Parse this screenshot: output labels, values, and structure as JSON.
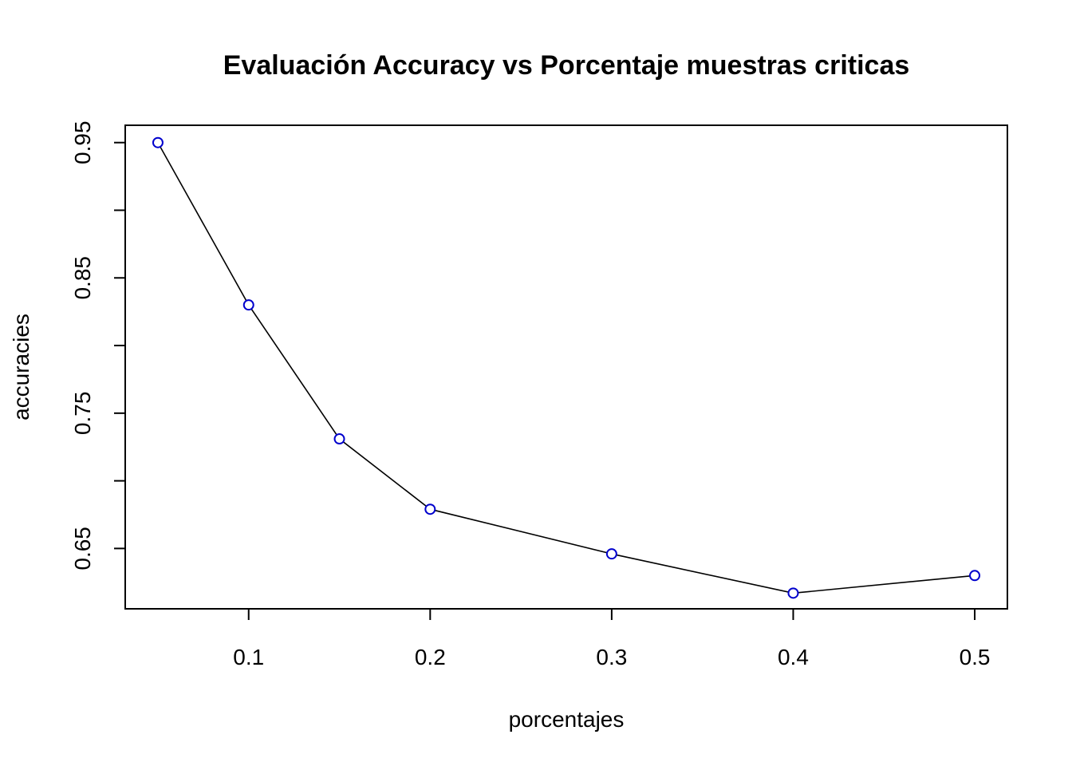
{
  "chart_data": {
    "type": "line",
    "title": "Evaluación Accuracy vs Porcentaje muestras criticas",
    "xlabel": "porcentajes",
    "ylabel": "accuracies",
    "x": [
      0.05,
      0.1,
      0.15,
      0.2,
      0.3,
      0.4,
      0.5
    ],
    "series": [
      {
        "values": [
          0.95,
          0.83,
          0.731,
          0.679,
          0.646,
          0.617,
          0.63
        ]
      }
    ],
    "x_ticks": [
      0.1,
      0.2,
      0.3,
      0.4,
      0.5
    ],
    "x_tick_labels": [
      "0.1",
      "0.2",
      "0.3",
      "0.4",
      "0.5"
    ],
    "y_ticks_major": [
      0.65,
      0.75,
      0.85,
      0.95
    ],
    "y_tick_labels": [
      "0.65",
      "0.75",
      "0.85",
      "0.95"
    ],
    "y_ticks_minor": [
      0.7,
      0.8,
      0.9
    ],
    "xlim": [
      0.032,
      0.518
    ],
    "ylim": [
      0.6054,
      0.9628
    ],
    "grid": false,
    "line_color": "#000000",
    "marker_color": "#0000CD",
    "marker_shape": "open-circle"
  }
}
